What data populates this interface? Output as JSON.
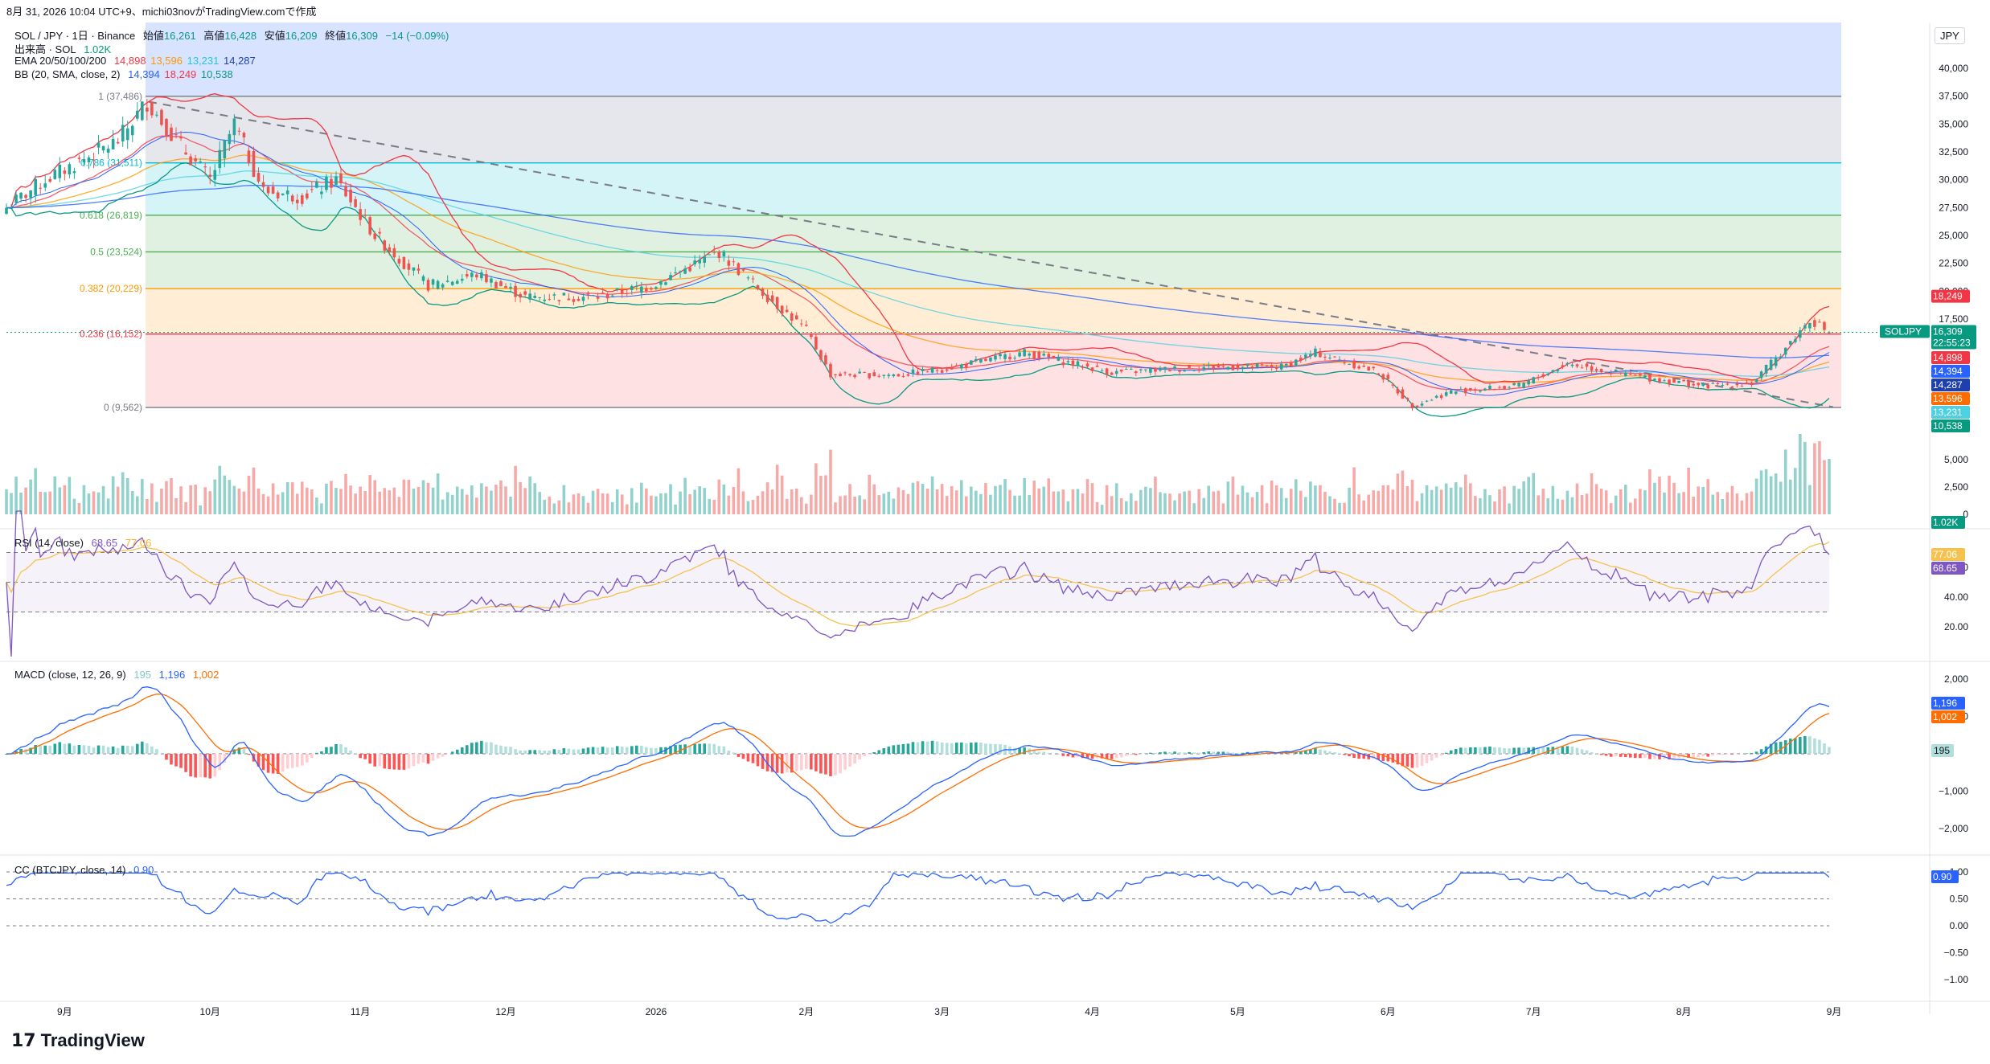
{
  "header": {
    "capture": "8月 31, 2026 10:04 UTC+9、michi03novがTradingView.comで作成",
    "symbol": "SOL / JPY · 1日 · Binance",
    "ohlc": [
      {
        "label": "始値",
        "value": "16,261"
      },
      {
        "label": "高値",
        "value": "16,428"
      },
      {
        "label": "安値",
        "value": "16,209"
      },
      {
        "label": "終値",
        "value": "16,309"
      },
      {
        "label": "",
        "value": "−14 (−0.09%)"
      }
    ]
  },
  "legend": {
    "volume": {
      "name": "出来高 · SOL",
      "value": "1.02K"
    },
    "ema": {
      "name": "EMA 20/50/100/200",
      "values": [
        "14,898",
        "13,596",
        "13,231",
        "14,287"
      ]
    },
    "bb": {
      "name": "BB (20, SMA, close, 2)",
      "values": [
        "14,394",
        "18,249",
        "10,538"
      ]
    },
    "rsi": {
      "name": "RSI (14, close)",
      "values": [
        "68.65",
        "77.06"
      ]
    },
    "macd": {
      "name": "MACD (close, 12, 26, 9)",
      "values": [
        "195",
        "1,196",
        "1,002"
      ]
    },
    "cc": {
      "name": "CC (BTCJPY, close, 14)",
      "values": [
        "0.90"
      ]
    }
  },
  "colors": {
    "up": "#26a69a",
    "down": "#ef5350",
    "ema20": "#f23645",
    "ema50": "#ff9800",
    "ema100": "#4dd0e1",
    "ema200": "#2962ff",
    "bb_basis": "#2962ff",
    "bb_upper": "#f23645",
    "bb_lower": "#089981",
    "rsi": "#7e57c2",
    "rsi_ma": "#f5c250",
    "macd": "#2962ff",
    "signal": "#ff6d00",
    "cc": "#2962ff"
  },
  "price_axis": {
    "unit": "JPY",
    "ticks": [
      "40,000",
      "37,500",
      "35,000",
      "32,500",
      "30,000",
      "27,500",
      "25,000",
      "22,500",
      "20,000",
      "17,500"
    ],
    "symbol_tag": "SOLJPY",
    "last_price": "16,309",
    "countdown": "22:55:23",
    "tags": [
      {
        "value": "18,249",
        "color": "#f23645"
      },
      {
        "value": "14,898",
        "color": "#f23645"
      },
      {
        "value": "14,394",
        "color": "#2962ff"
      },
      {
        "value": "14,287",
        "color": "#1e3fae"
      },
      {
        "value": "13,596",
        "color": "#ff6d00"
      },
      {
        "value": "13,231",
        "color": "#4dd0e1"
      },
      {
        "value": "10,538",
        "color": "#089981"
      }
    ]
  },
  "volume_axis": {
    "ticks": [
      "5,000",
      "2,500",
      "0"
    ],
    "tag": "1.02K"
  },
  "rsi_axis": {
    "ticks": [
      "60.00",
      "40.00",
      "20.00"
    ],
    "tags": [
      "77.06",
      "68.65"
    ]
  },
  "macd_axis": {
    "ticks": [
      "2,000",
      "1,000",
      "−1,000",
      "−2,000"
    ],
    "tags": [
      "1,196",
      "1,002",
      "195"
    ]
  },
  "cc_axis": {
    "ticks": [
      "1.00",
      "0.50",
      "0.00",
      "−0.50",
      "−1.00"
    ],
    "tag": "0.90"
  },
  "time_axis": [
    "9月",
    "10月",
    "11月",
    "12月",
    "2026",
    "2月",
    "3月",
    "4月",
    "5月",
    "6月",
    "7月",
    "8月",
    "9月"
  ],
  "fib_levels": [
    {
      "ratio": "1",
      "value": "(37,486)"
    },
    {
      "ratio": "0.786",
      "value": "(31,511)"
    },
    {
      "ratio": "0.618",
      "value": "(26,819)"
    },
    {
      "ratio": "0.5",
      "value": "(23,524)"
    },
    {
      "ratio": "0.382",
      "value": "(20,229)"
    },
    {
      "ratio": "0.236",
      "value": "(16,152)"
    },
    {
      "ratio": "0",
      "value": "(9,562)"
    }
  ],
  "brand": "TradingView",
  "chart_data": {
    "type": "candlestick",
    "title": "SOL / JPY · 1日 · Binance",
    "x_range": [
      "2025-08-20",
      "2026-08-31"
    ],
    "ylim": [
      9000,
      41000
    ],
    "price_path": [
      {
        "date": "2025-08-20",
        "close": 27500
      },
      {
        "date": "2025-08-28",
        "close": 30000
      },
      {
        "date": "2025-09-12",
        "close": 33500
      },
      {
        "date": "2025-09-18",
        "close": 37000
      },
      {
        "date": "2025-09-25",
        "close": 33000
      },
      {
        "date": "2025-10-01",
        "close": 30000
      },
      {
        "date": "2025-10-06",
        "close": 35000
      },
      {
        "date": "2025-10-12",
        "close": 29000
      },
      {
        "date": "2025-10-20",
        "close": 28500
      },
      {
        "date": "2025-10-27",
        "close": 30000
      },
      {
        "date": "2025-11-04",
        "close": 25000
      },
      {
        "date": "2025-11-15",
        "close": 20500
      },
      {
        "date": "2025-11-25",
        "close": 21500
      },
      {
        "date": "2025-12-05",
        "close": 19500
      },
      {
        "date": "2025-12-20",
        "close": 19500
      },
      {
        "date": "2025-12-31",
        "close": 20500
      },
      {
        "date": "2026-01-14",
        "close": 23500
      },
      {
        "date": "2026-01-24",
        "close": 19500
      },
      {
        "date": "2026-02-01",
        "close": 16500
      },
      {
        "date": "2026-02-06",
        "close": 12500
      },
      {
        "date": "2026-02-20",
        "close": 12500
      },
      {
        "date": "2026-03-01",
        "close": 13000
      },
      {
        "date": "2026-03-18",
        "close": 14500
      },
      {
        "date": "2026-04-05",
        "close": 12700
      },
      {
        "date": "2026-04-25",
        "close": 13200
      },
      {
        "date": "2026-05-10",
        "close": 13200
      },
      {
        "date": "2026-05-17",
        "close": 14500
      },
      {
        "date": "2026-05-30",
        "close": 12700
      },
      {
        "date": "2026-06-06",
        "close": 9700
      },
      {
        "date": "2026-06-14",
        "close": 11000
      },
      {
        "date": "2026-06-28",
        "close": 11500
      },
      {
        "date": "2026-07-08",
        "close": 13500
      },
      {
        "date": "2026-07-20",
        "close": 12500
      },
      {
        "date": "2026-08-05",
        "close": 11500
      },
      {
        "date": "2026-08-15",
        "close": 11700
      },
      {
        "date": "2026-08-20",
        "close": 14000
      },
      {
        "date": "2026-08-25",
        "close": 16400
      },
      {
        "date": "2026-08-27",
        "close": 17500
      },
      {
        "date": "2026-08-31",
        "close": 16309
      }
    ],
    "last_bar": {
      "open": 16261,
      "high": 16428,
      "low": 16209,
      "close": 16309,
      "change": -14,
      "change_pct": -0.09
    },
    "rsi_last": 68.65,
    "rsi_ma_last": 77.06,
    "macd_last": 1196,
    "signal_last": 1002,
    "hist_last": 195,
    "cc_last": 0.9
  }
}
